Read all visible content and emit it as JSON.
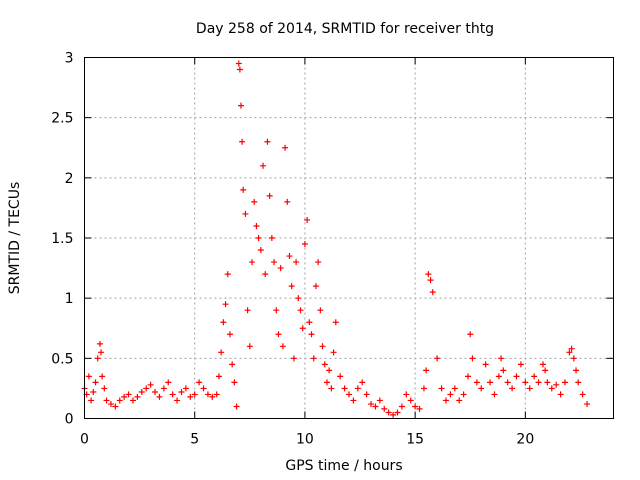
{
  "chart_data": {
    "type": "scatter",
    "title": "Day 258 of 2014, SRMTID for receiver thtg",
    "xlabel": "GPS time / hours",
    "ylabel": "SRMTID / TECUs",
    "xlim": [
      0,
      24
    ],
    "ylim": [
      0,
      3
    ],
    "xticks": [
      0,
      5,
      10,
      15,
      20
    ],
    "yticks": [
      0,
      0.5,
      1,
      1.5,
      2,
      2.5,
      3
    ],
    "xtick_labels": [
      "0",
      "5",
      "10",
      "15",
      "20"
    ],
    "ytick_labels": [
      "0",
      "0.5",
      "1",
      "1.5",
      "2",
      "2.5",
      "3"
    ],
    "grid": true,
    "marker": "+",
    "color": "#ff0000",
    "series": [
      {
        "name": "SRMTID",
        "x": [
          0.0,
          0.1,
          0.2,
          0.3,
          0.4,
          0.5,
          0.6,
          0.7,
          0.75,
          0.8,
          0.9,
          1.0,
          1.2,
          1.4,
          1.6,
          1.8,
          2.0,
          2.2,
          2.4,
          2.6,
          2.8,
          3.0,
          3.2,
          3.4,
          3.6,
          3.8,
          4.0,
          4.2,
          4.4,
          4.6,
          4.8,
          5.0,
          5.2,
          5.4,
          5.6,
          5.8,
          6.0,
          6.1,
          6.2,
          6.3,
          6.4,
          6.5,
          6.6,
          6.7,
          6.8,
          6.9,
          7.0,
          7.05,
          7.1,
          7.15,
          7.2,
          7.3,
          7.4,
          7.5,
          7.6,
          7.7,
          7.8,
          7.9,
          8.0,
          8.1,
          8.2,
          8.3,
          8.4,
          8.5,
          8.6,
          8.7,
          8.8,
          8.9,
          9.0,
          9.1,
          9.2,
          9.3,
          9.4,
          9.5,
          9.6,
          9.7,
          9.8,
          9.9,
          10.0,
          10.1,
          10.2,
          10.3,
          10.4,
          10.5,
          10.6,
          10.7,
          10.8,
          10.9,
          11.0,
          11.1,
          11.2,
          11.3,
          11.4,
          11.6,
          11.8,
          12.0,
          12.2,
          12.4,
          12.6,
          12.8,
          13.0,
          13.2,
          13.4,
          13.6,
          13.8,
          14.0,
          14.2,
          14.4,
          14.6,
          14.8,
          15.0,
          15.2,
          15.4,
          15.5,
          15.6,
          15.7,
          15.8,
          16.0,
          16.2,
          16.4,
          16.6,
          16.8,
          17.0,
          17.2,
          17.4,
          17.5,
          17.6,
          17.8,
          18.0,
          18.2,
          18.4,
          18.6,
          18.8,
          18.9,
          19.0,
          19.2,
          19.4,
          19.6,
          19.8,
          20.0,
          20.2,
          20.4,
          20.6,
          20.8,
          20.9,
          21.0,
          21.2,
          21.4,
          21.6,
          21.8,
          22.0,
          22.1,
          22.2,
          22.3,
          22.4,
          22.6,
          22.8
        ],
        "y": [
          0.25,
          0.2,
          0.35,
          0.15,
          0.22,
          0.3,
          0.5,
          0.62,
          0.55,
          0.35,
          0.25,
          0.15,
          0.12,
          0.1,
          0.15,
          0.18,
          0.2,
          0.15,
          0.18,
          0.22,
          0.25,
          0.28,
          0.22,
          0.18,
          0.25,
          0.3,
          0.2,
          0.15,
          0.22,
          0.25,
          0.18,
          0.2,
          0.3,
          0.25,
          0.2,
          0.18,
          0.2,
          0.35,
          0.55,
          0.8,
          0.95,
          1.2,
          0.7,
          0.45,
          0.3,
          0.1,
          2.95,
          2.9,
          2.6,
          2.3,
          1.9,
          1.7,
          0.9,
          0.6,
          1.3,
          1.8,
          1.6,
          1.5,
          1.4,
          2.1,
          1.2,
          2.3,
          1.85,
          1.5,
          1.3,
          0.9,
          0.7,
          1.25,
          0.6,
          2.25,
          1.8,
          1.35,
          1.1,
          0.5,
          1.3,
          1.0,
          0.9,
          0.75,
          1.45,
          1.65,
          0.8,
          0.7,
          0.5,
          1.1,
          1.3,
          0.9,
          0.6,
          0.45,
          0.3,
          0.4,
          0.25,
          0.55,
          0.8,
          0.35,
          0.25,
          0.2,
          0.15,
          0.25,
          0.3,
          0.2,
          0.12,
          0.1,
          0.15,
          0.08,
          0.05,
          0.03,
          0.05,
          0.1,
          0.2,
          0.15,
          0.1,
          0.08,
          0.25,
          0.4,
          1.2,
          1.15,
          1.05,
          0.5,
          0.25,
          0.15,
          0.2,
          0.25,
          0.15,
          0.2,
          0.35,
          0.7,
          0.5,
          0.3,
          0.25,
          0.45,
          0.3,
          0.2,
          0.35,
          0.5,
          0.4,
          0.3,
          0.25,
          0.35,
          0.45,
          0.3,
          0.25,
          0.35,
          0.3,
          0.45,
          0.4,
          0.3,
          0.25,
          0.28,
          0.2,
          0.3,
          0.55,
          0.58,
          0.5,
          0.4,
          0.3,
          0.2,
          0.12
        ]
      }
    ]
  }
}
